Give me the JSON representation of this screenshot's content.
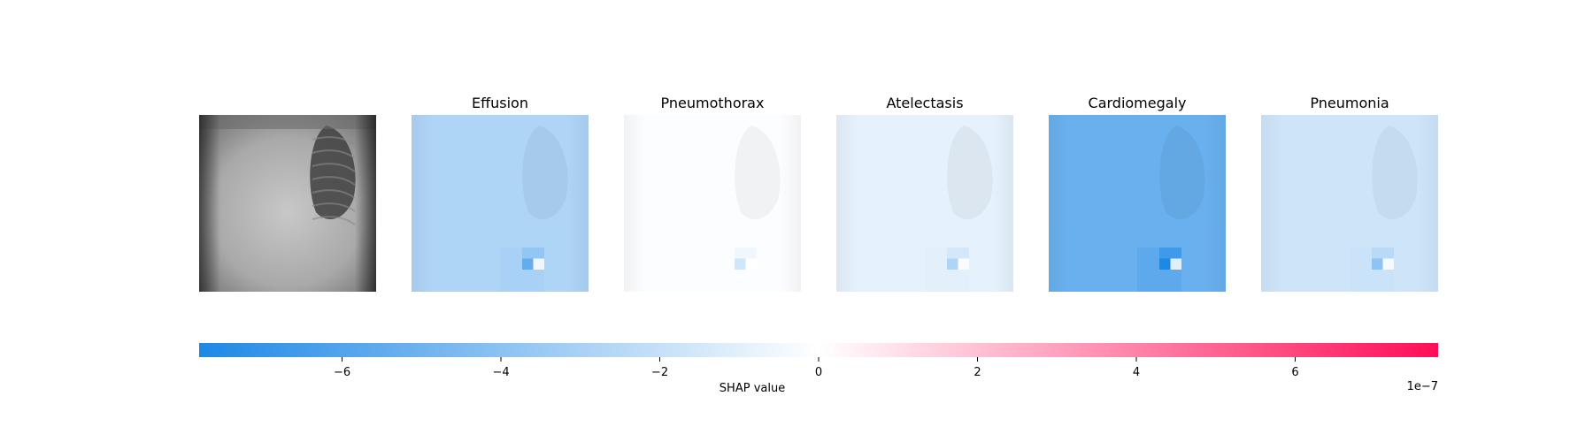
{
  "chart_data": {
    "type": "heatmap",
    "panels": [
      {
        "title": "",
        "kind": "input-image",
        "shap_base": null
      },
      {
        "title": "Effusion",
        "kind": "shap-overlay",
        "shap_base": -2.8e-07
      },
      {
        "title": "Pneumothorax",
        "kind": "shap-overlay",
        "shap_base": -1e-08
      },
      {
        "title": "Atelectasis",
        "kind": "shap-overlay",
        "shap_base": -9e-08
      },
      {
        "title": "Cardiomegaly",
        "kind": "shap-overlay",
        "shap_base": -5.2e-07
      },
      {
        "title": "Pneumonia",
        "kind": "shap-overlay",
        "shap_base": -1.7e-07
      }
    ],
    "colorbar": {
      "label": "SHAP value",
      "range": [
        -7.8e-07,
        7.8e-07
      ],
      "ticks": [
        -6,
        -4,
        -2,
        0,
        2,
        4,
        6
      ],
      "tick_labels": [
        "−6",
        "−4",
        "−2",
        "0",
        "2",
        "4",
        "6"
      ],
      "scale_label": "1e−7",
      "colors": {
        "negative": "#1e88e5",
        "zero": "#ffffff",
        "positive": "#ff0d57"
      }
    }
  }
}
